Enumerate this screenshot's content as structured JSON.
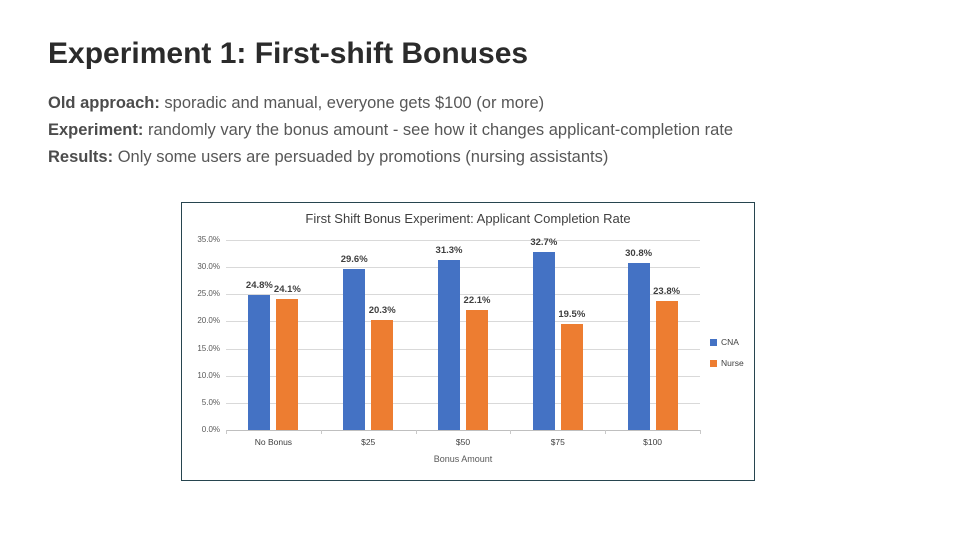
{
  "slide": {
    "title": "Experiment 1: First-shift Bonuses",
    "lines": [
      {
        "label": "Old approach:",
        "text": " sporadic and manual, everyone gets $100 (or more)"
      },
      {
        "label": "Experiment:",
        "text": " randomly vary the bonus amount - see how it changes applicant-completion rate"
      },
      {
        "label": "Results:",
        "text": " Only some users are persuaded by promotions (nursing assistants)"
      }
    ]
  },
  "chart_data": {
    "type": "bar",
    "title": "First Shift Bonus Experiment: Applicant Completion Rate",
    "xlabel": "Bonus Amount",
    "ylabel": "",
    "categories": [
      "No Bonus",
      "$25",
      "$50",
      "$75",
      "$100"
    ],
    "series": [
      {
        "name": "CNA",
        "color": "#4472C4",
        "values": [
          24.8,
          29.6,
          31.3,
          32.7,
          30.8
        ]
      },
      {
        "name": "Nurse",
        "color": "#ED7D31",
        "values": [
          24.1,
          20.3,
          22.1,
          19.5,
          23.8
        ]
      }
    ],
    "value_suffix": "%",
    "ylim": [
      0,
      35
    ],
    "ytick_step": 5,
    "ytick_labels": [
      "0.0%",
      "5.0%",
      "10.0%",
      "15.0%",
      "20.0%",
      "25.0%",
      "30.0%",
      "35.0%"
    ],
    "grid": true,
    "legend_position": "right"
  },
  "colors": {
    "chart_border": "#27454f",
    "gridline": "#d9d9d9",
    "axisline": "#bfbfbf",
    "chart_text": "#404040",
    "tick_text": "#595959"
  }
}
